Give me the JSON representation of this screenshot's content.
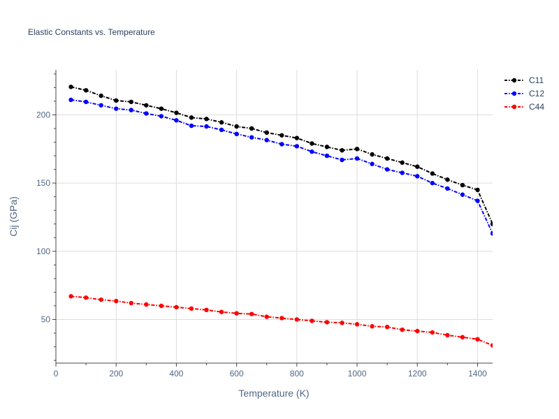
{
  "chart_data": {
    "type": "line",
    "title": "Elastic Constants vs. Temperature",
    "xlabel": "Temperature (K)",
    "ylabel": "Cij (GPa)",
    "xlim": [
      0,
      1450
    ],
    "ylim": [
      18,
      233
    ],
    "x_ticks": [
      0,
      200,
      400,
      600,
      800,
      1000,
      1200,
      1400
    ],
    "y_ticks": [
      50,
      100,
      150,
      200
    ],
    "grid": true,
    "legend_position": "top-right",
    "x": [
      50,
      100,
      150,
      200,
      250,
      300,
      350,
      400,
      450,
      500,
      550,
      600,
      650,
      700,
      750,
      800,
      850,
      900,
      950,
      1000,
      1050,
      1100,
      1150,
      1200,
      1250,
      1300,
      1350,
      1400,
      1450
    ],
    "series": [
      {
        "name": "C11",
        "color": "#000000",
        "values": [
          220.5,
          218,
          214,
          210.5,
          209.5,
          207,
          204.5,
          201.5,
          198,
          197,
          194.5,
          191.5,
          190,
          187,
          185,
          183,
          179,
          176.5,
          174,
          175,
          171,
          168,
          165,
          162,
          157,
          152.5,
          148.5,
          145,
          120
        ]
      },
      {
        "name": "C12",
        "color": "#0000ff",
        "values": [
          211,
          209.5,
          207,
          204.5,
          203.5,
          201,
          199,
          196,
          192,
          191.5,
          189,
          186,
          183.5,
          181.5,
          178.5,
          177,
          173,
          170,
          167,
          168,
          164,
          160,
          157.5,
          155,
          150,
          146,
          141.5,
          137,
          113
        ]
      },
      {
        "name": "C44",
        "color": "#ff0000",
        "values": [
          67,
          66,
          64.5,
          63.5,
          62,
          61,
          60,
          59,
          58,
          57,
          55.5,
          54.5,
          54,
          52,
          51,
          50,
          49,
          48,
          47.5,
          46.5,
          45,
          44.5,
          42.5,
          41.5,
          40.5,
          38.5,
          37,
          35.5,
          31
        ]
      }
    ]
  }
}
